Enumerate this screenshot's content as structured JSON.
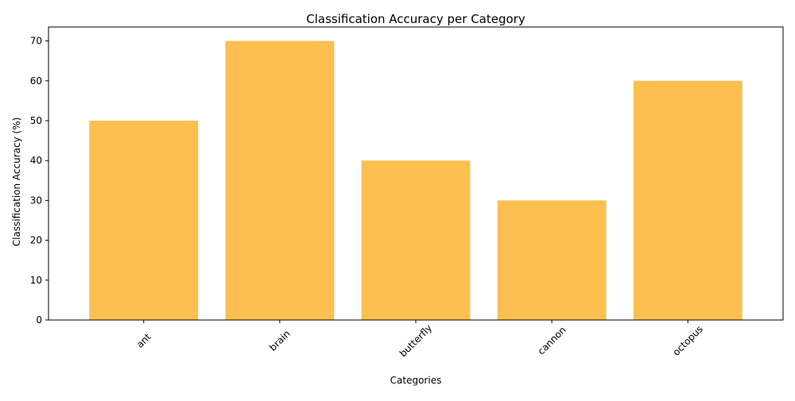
{
  "chart_data": {
    "type": "bar",
    "title": "Classification Accuracy per Category",
    "xlabel": "Categories",
    "ylabel": "Classification Accuracy (%)",
    "categories": [
      "ant",
      "brain",
      "butterfly",
      "cannon",
      "octopus"
    ],
    "values": [
      50,
      70,
      40,
      30,
      60
    ],
    "ylim": [
      0,
      73.5
    ],
    "yticks": [
      0,
      10,
      20,
      30,
      40,
      50,
      60,
      70
    ],
    "bar_color": "#fdbf4f",
    "x_tick_rotation": 45,
    "grid": false,
    "legend": "none"
  }
}
